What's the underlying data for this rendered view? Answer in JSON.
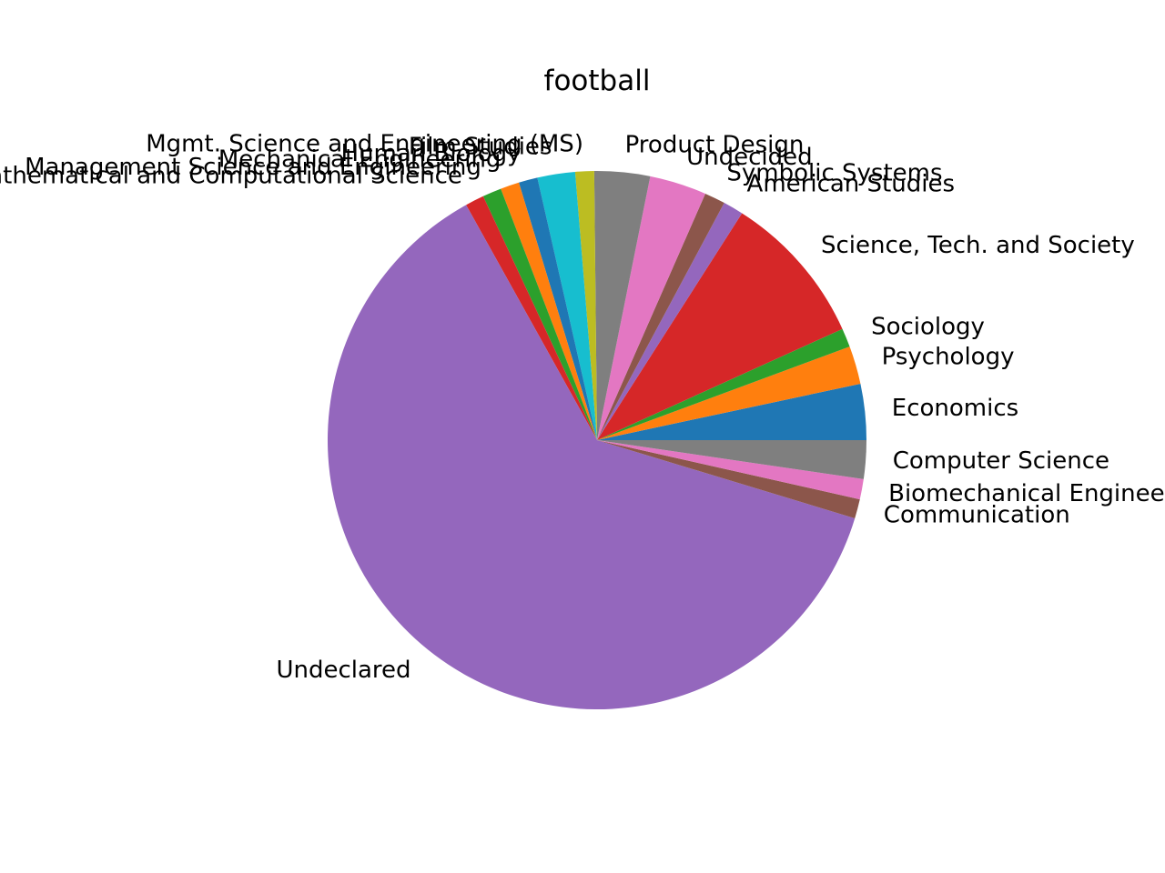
{
  "chart_data": {
    "type": "pie",
    "title": "football",
    "start_angle_deg": 0,
    "direction": "counterclockwise",
    "unit": "degrees",
    "slices": [
      {
        "label": "Economics",
        "value": 11.9,
        "color": "#1f77b4"
      },
      {
        "label": "Psychology",
        "value": 8.1,
        "color": "#ff7f0e"
      },
      {
        "label": "Sociology",
        "value": 4.0,
        "color": "#2ca02c"
      },
      {
        "label": "Science, Tech. and Society",
        "value": 32.5,
        "color": "#d62728"
      },
      {
        "label": "American Studies",
        "value": 4.3,
        "color": "#9467bd"
      },
      {
        "label": "Symbolic Systems",
        "value": 4.4,
        "color": "#8c564b"
      },
      {
        "label": "Undecided",
        "value": 12.1,
        "color": "#e377c2"
      },
      {
        "label": "Product Design",
        "value": 11.8,
        "color": "#7f7f7f"
      },
      {
        "label": "Mgmt. Science and Engineering (MS)",
        "value": 4.0,
        "color": "#bcbd22"
      },
      {
        "label": "Film Studies",
        "value": 8.0,
        "color": "#17becf"
      },
      {
        "label": "Human Biology",
        "value": 4.0,
        "color": "#1f77b4"
      },
      {
        "label": "Mechanical Engineering",
        "value": 4.0,
        "color": "#ff7f0e"
      },
      {
        "label": "Management Science and Engineering",
        "value": 4.0,
        "color": "#2ca02c"
      },
      {
        "label": "Mathematical and Computational Science",
        "value": 4.0,
        "color": "#d62728"
      },
      {
        "label": "Undeclared",
        "value": 220.3,
        "color": "#9467bd"
      },
      {
        "label": "Communication",
        "value": 4.1,
        "color": "#8c564b"
      },
      {
        "label": "Biomechanical Engineering",
        "value": 4.3,
        "color": "#e377c2"
      },
      {
        "label": "Computer Science",
        "value": 8.2,
        "color": "#7f7f7f"
      }
    ]
  }
}
